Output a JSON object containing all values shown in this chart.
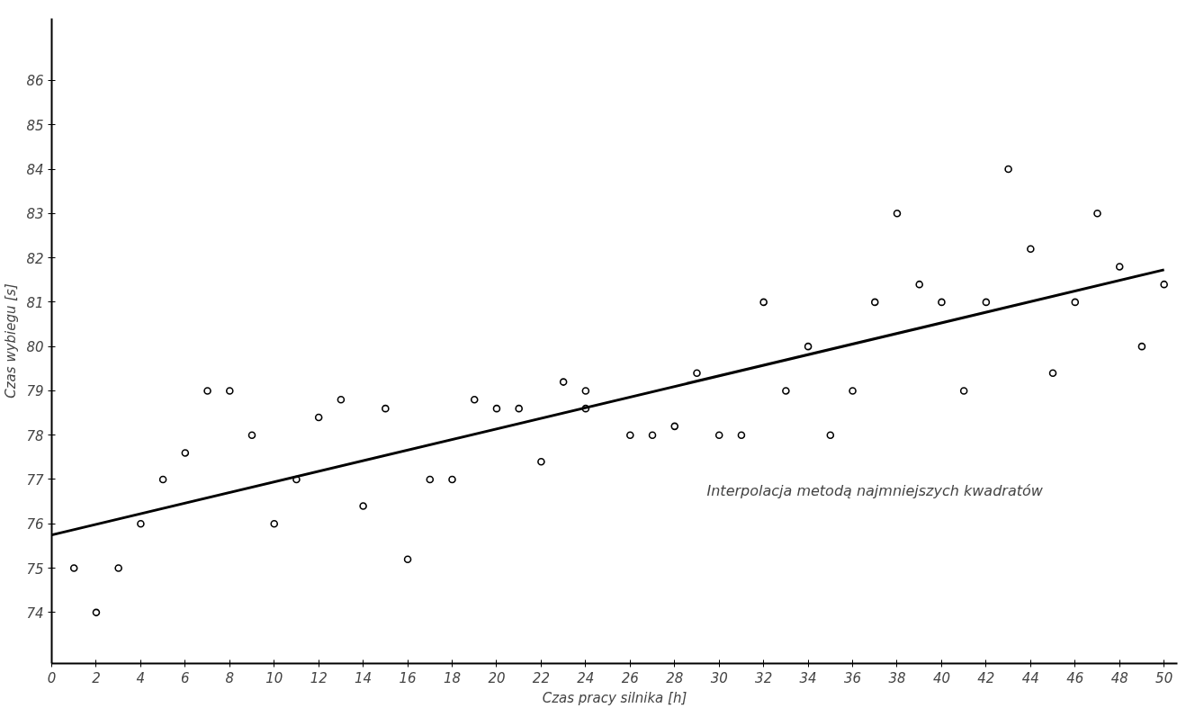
{
  "chart_data": {
    "type": "scatter",
    "xlabel": "Czas pracy silnika [h]",
    "ylabel": "Czas wybiegu [s]",
    "xlim": [
      0,
      50.6
    ],
    "ylim": [
      72.85,
      87.4
    ],
    "xticks": [
      0,
      2,
      4,
      6,
      8,
      10,
      12,
      14,
      16,
      18,
      20,
      22,
      24,
      26,
      28,
      30,
      32,
      34,
      36,
      38,
      40,
      42,
      44,
      46,
      48,
      50
    ],
    "yticks": [
      74,
      75,
      76,
      77,
      78,
      79,
      80,
      81,
      82,
      83,
      84,
      85,
      86
    ],
    "grid": false,
    "annotations": [
      "Interpolacja  metodą  najmniejszych  kwadratów"
    ],
    "series": [
      {
        "marker": "circle",
        "color": "#000000",
        "x": [
          1,
          2,
          3,
          4,
          5,
          6,
          7,
          8,
          9,
          10,
          11,
          12,
          13,
          14,
          15,
          16,
          17,
          18,
          19,
          20,
          21,
          22,
          23,
          24,
          24,
          26,
          27,
          28,
          29,
          30,
          31,
          32,
          33,
          34,
          35,
          36,
          37,
          38,
          39,
          40,
          41,
          42,
          43,
          44,
          45,
          46,
          47,
          48,
          49,
          50
        ],
        "values": [
          75,
          74,
          75,
          76,
          77,
          77.6,
          79,
          79,
          78,
          76,
          77,
          78.4,
          78.8,
          76.4,
          78.6,
          75.2,
          77,
          77,
          78.8,
          78.6,
          78.6,
          77.4,
          79.2,
          79.0,
          78.6,
          78,
          78,
          78.2,
          79.4,
          78,
          78,
          81,
          79,
          80,
          78,
          79,
          81,
          83,
          81.4,
          81,
          79,
          81,
          84,
          82.2,
          79.4,
          81,
          83,
          81.8,
          80,
          81.4
        ]
      },
      {
        "type": "line",
        "color": "#000000",
        "line_style": "solid",
        "x": [
          0,
          50
        ],
        "values": [
          75.75,
          81.73
        ]
      }
    ]
  }
}
